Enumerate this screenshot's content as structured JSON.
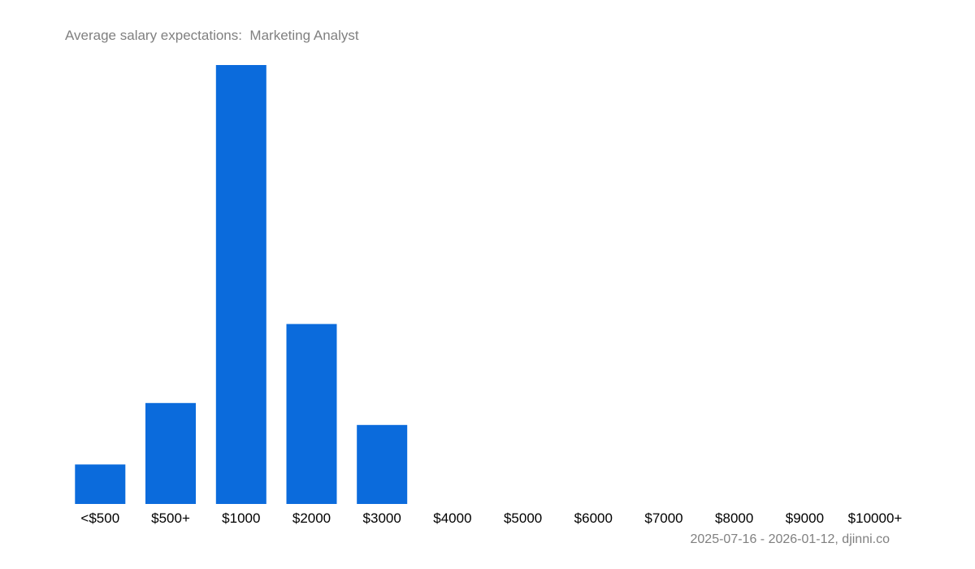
{
  "chart_data": {
    "type": "bar",
    "title": "Average salary expectations:  Marketing Analyst",
    "categories": [
      "<$500",
      "$500+",
      "$1000",
      "$2000",
      "$3000",
      "$4000",
      "$5000",
      "$6000",
      "$7000",
      "$8000",
      "$9000",
      "$10000+"
    ],
    "values": [
      9,
      23,
      100,
      41,
      18,
      0,
      0,
      0,
      0,
      0,
      0,
      0
    ],
    "ylim": [
      0,
      100
    ],
    "xlabel": "",
    "ylabel": "",
    "grid": false,
    "legend": "none",
    "bar_color": "#0b6bdc",
    "footer": "2025-07-16 - 2026-01-12, djinni.co"
  }
}
